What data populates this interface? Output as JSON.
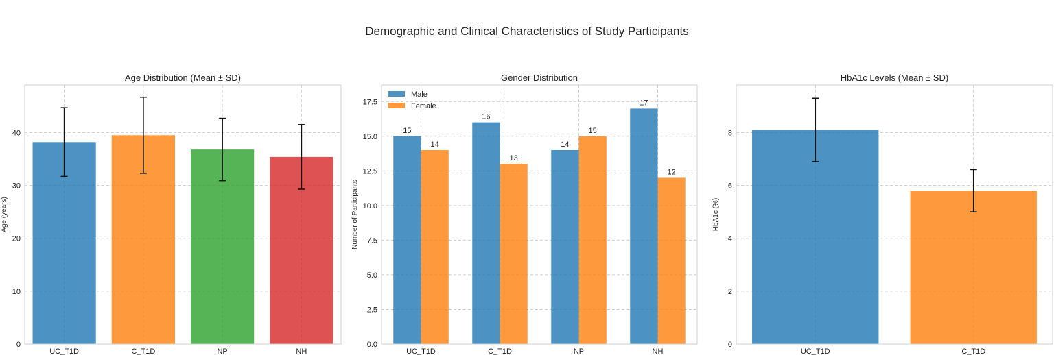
{
  "figure": {
    "title": "Demographic and Clinical Characteristics of Study Participants"
  },
  "chart_data": [
    {
      "type": "bar",
      "title": "Age Distribution (Mean ± SD)",
      "xlabel": "",
      "ylabel": "Age (years)",
      "categories": [
        "UC_T1D",
        "C_T1D",
        "NP",
        "NH"
      ],
      "values": [
        38.2,
        39.5,
        36.8,
        35.4
      ],
      "errors": [
        6.5,
        7.2,
        5.9,
        6.1
      ],
      "colors": [
        "#1f77b4",
        "#ff7f0e",
        "#2ca02c",
        "#d62728"
      ],
      "ylim": [
        0,
        49
      ],
      "yticks": [
        0,
        10,
        20,
        30,
        40
      ],
      "grid": true
    },
    {
      "type": "bar",
      "title": "Gender Distribution",
      "xlabel": "",
      "ylabel": "Number of Participants",
      "categories": [
        "UC_T1D",
        "C_T1D",
        "NP",
        "NH"
      ],
      "series": [
        {
          "name": "Male",
          "values": [
            15,
            16,
            14,
            17
          ],
          "color": "#1f77b4"
        },
        {
          "name": "Female",
          "values": [
            14,
            13,
            15,
            12
          ],
          "color": "#ff7f0e"
        }
      ],
      "ylim": [
        0,
        18.7
      ],
      "yticks": [
        0.0,
        2.5,
        5.0,
        7.5,
        10.0,
        12.5,
        15.0,
        17.5
      ],
      "legend": "top-left",
      "grid": true
    },
    {
      "type": "bar",
      "title": "HbA1c Levels (Mean ± SD)",
      "xlabel": "",
      "ylabel": "HbA1c (%)",
      "categories": [
        "UC_T1D",
        "C_T1D"
      ],
      "values": [
        8.1,
        5.8
      ],
      "errors": [
        1.2,
        0.8
      ],
      "colors": [
        "#1f77b4",
        "#ff7f0e"
      ],
      "ylim": [
        0,
        9.8
      ],
      "yticks": [
        0,
        2,
        4,
        6,
        8
      ],
      "grid": true
    }
  ]
}
